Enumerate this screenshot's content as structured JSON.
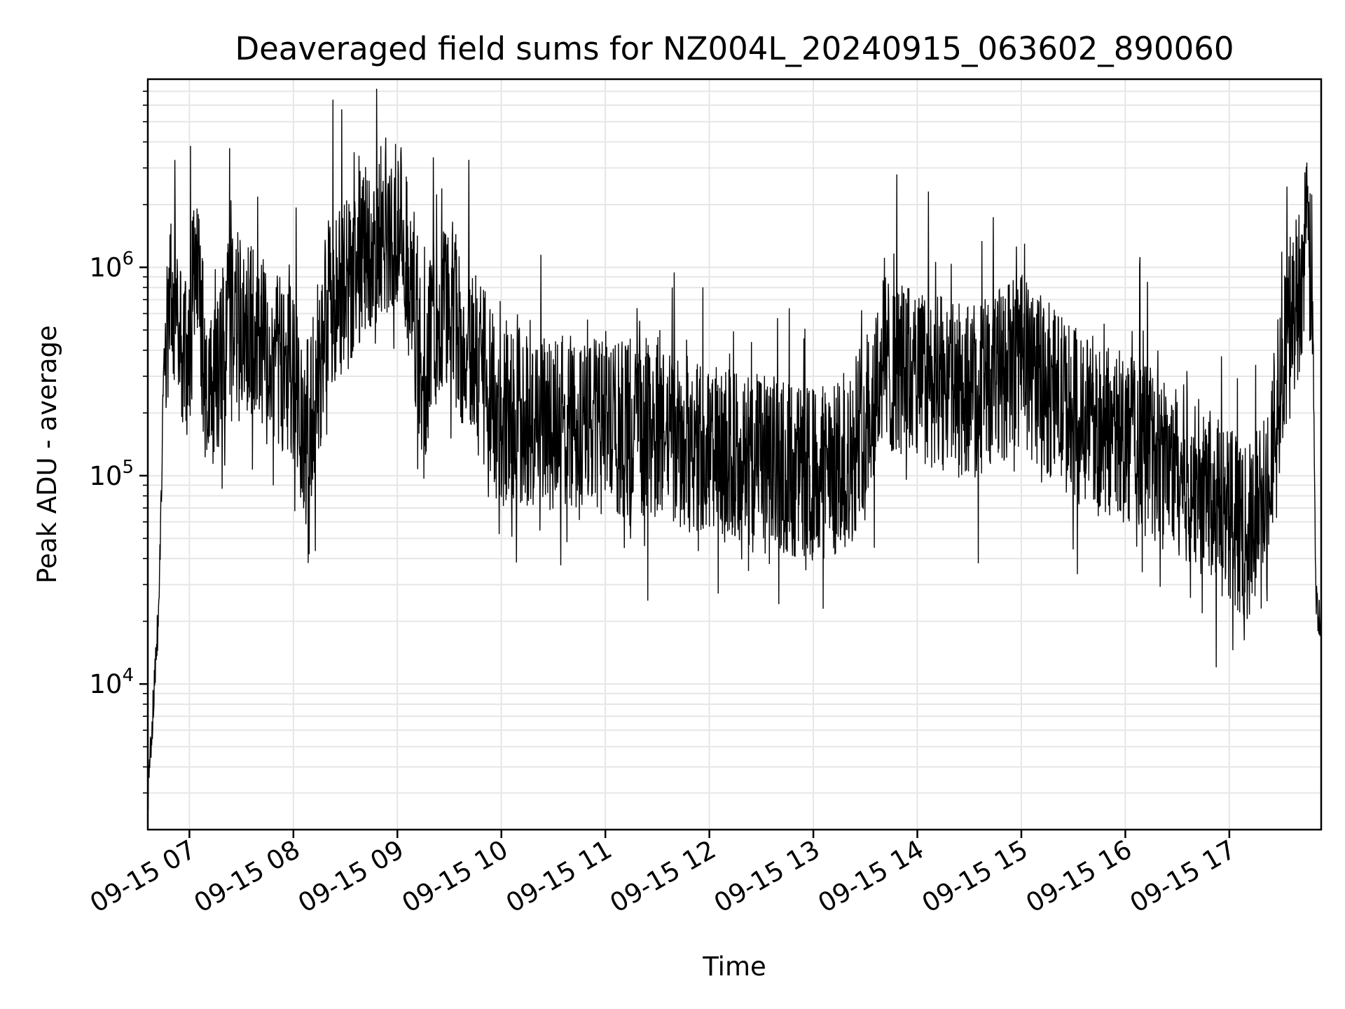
{
  "chart_data": {
    "type": "line",
    "title": "Deaveraged field sums for NZ004L_20240915_063602_890060",
    "xlabel": "Time",
    "ylabel": "Peak ADU - average",
    "x_scale": "time",
    "y_scale": "log",
    "xlim": [
      "2024-09-15T06:36",
      "2024-09-15T17:53"
    ],
    "ylim": [
      2000,
      8000000
    ],
    "grid": true,
    "grid_minor": true,
    "legend": "none",
    "line_color": "#000000",
    "x_ticks": [
      {
        "value": "2024-09-15T07:00",
        "label": "09-15 07"
      },
      {
        "value": "2024-09-15T08:00",
        "label": "09-15 08"
      },
      {
        "value": "2024-09-15T09:00",
        "label": "09-15 09"
      },
      {
        "value": "2024-09-15T10:00",
        "label": "09-15 10"
      },
      {
        "value": "2024-09-15T11:00",
        "label": "09-15 11"
      },
      {
        "value": "2024-09-15T12:00",
        "label": "09-15 12"
      },
      {
        "value": "2024-09-15T13:00",
        "label": "09-15 13"
      },
      {
        "value": "2024-09-15T14:00",
        "label": "09-15 14"
      },
      {
        "value": "2024-09-15T15:00",
        "label": "09-15 15"
      },
      {
        "value": "2024-09-15T16:00",
        "label": "09-15 16"
      },
      {
        "value": "2024-09-15T17:00",
        "label": "09-15 17"
      }
    ],
    "y_ticks": [
      {
        "value": 10000,
        "base": "10",
        "exp": "4"
      },
      {
        "value": 100000,
        "base": "10",
        "exp": "5"
      },
      {
        "value": 1000000,
        "base": "10",
        "exp": "6"
      }
    ],
    "series": [
      {
        "x": [
          "2024-09-15T06:36",
          "2024-09-15T06:37",
          "2024-09-15T06:38",
          "2024-09-15T06:39",
          "2024-09-15T06:40",
          "2024-09-15T06:41",
          "2024-09-15T06:42",
          "2024-09-15T06:43",
          "2024-09-15T06:44",
          "2024-09-15T06:45",
          "2024-09-15T06:46",
          "2024-09-15T06:48",
          "2024-09-15T06:50",
          "2024-09-15T06:52",
          "2024-09-15T06:55",
          "2024-09-15T06:58",
          "2024-09-15T07:00",
          "2024-09-15T07:03",
          "2024-09-15T07:06",
          "2024-09-15T07:10",
          "2024-09-15T07:15",
          "2024-09-15T07:20",
          "2024-09-15T07:30",
          "2024-09-15T07:40",
          "2024-09-15T07:50",
          "2024-09-15T08:00",
          "2024-09-15T08:05",
          "2024-09-15T08:10",
          "2024-09-15T08:15",
          "2024-09-15T08:20",
          "2024-09-15T08:30",
          "2024-09-15T08:40",
          "2024-09-15T08:50",
          "2024-09-15T09:00",
          "2024-09-15T09:05",
          "2024-09-15T09:10",
          "2024-09-15T09:15",
          "2024-09-15T09:20",
          "2024-09-15T09:30",
          "2024-09-15T09:40",
          "2024-09-15T09:50",
          "2024-09-15T10:00",
          "2024-09-15T10:30",
          "2024-09-15T11:00",
          "2024-09-15T11:30",
          "2024-09-15T12:00",
          "2024-09-15T12:30",
          "2024-09-15T13:00",
          "2024-09-15T13:20",
          "2024-09-15T13:40",
          "2024-09-15T14:00",
          "2024-09-15T14:30",
          "2024-09-15T15:00",
          "2024-09-15T15:30",
          "2024-09-15T16:00",
          "2024-09-15T16:30",
          "2024-09-15T17:00",
          "2024-09-15T17:10",
          "2024-09-15T17:20",
          "2024-09-15T17:30",
          "2024-09-15T17:40",
          "2024-09-15T17:45",
          "2024-09-15T17:48",
          "2024-09-15T17:50",
          "2024-09-15T17:53"
        ],
        "y": [
          2900,
          4000,
          5000,
          7500,
          10000,
          15000,
          20000,
          40000,
          100000,
          300000,
          400000,
          600000,
          800000,
          700000,
          500000,
          350000,
          400000,
          1000000,
          700000,
          250000,
          300000,
          500000,
          600000,
          450000,
          350000,
          300000,
          150000,
          200000,
          300000,
          700000,
          800000,
          1200000,
          1500000,
          1800000,
          1200000,
          600000,
          250000,
          500000,
          700000,
          400000,
          300000,
          200000,
          180000,
          170000,
          160000,
          130000,
          120000,
          100000,
          110000,
          350000,
          300000,
          250000,
          350000,
          200000,
          150000,
          110000,
          70000,
          50000,
          80000,
          300000,
          800000,
          1300000,
          800000,
          25000,
          18000
        ]
      }
    ]
  }
}
